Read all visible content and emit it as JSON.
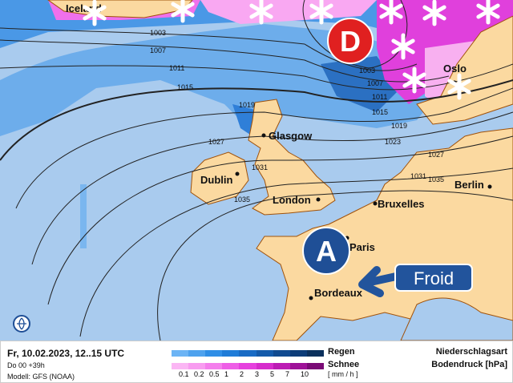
{
  "map": {
    "cities": [
      {
        "name": "Glasgow"
      },
      {
        "name": "Dublin"
      },
      {
        "name": "London"
      },
      {
        "name": "Bruxelles"
      },
      {
        "name": "Paris"
      },
      {
        "name": "Bordeaux"
      },
      {
        "name": "Berlin"
      },
      {
        "name": "Oslo"
      },
      {
        "name": "Iceland"
      }
    ],
    "isobar_labels": [
      "1003",
      "1007",
      "1011",
      "1015",
      "1019",
      "1023",
      "1027",
      "1031",
      "1035",
      "1003",
      "1007",
      "1011",
      "1015",
      "1019",
      "1023",
      "1027",
      "1031",
      "1035"
    ],
    "low_pressure_label": "D",
    "high_pressure_label": "A",
    "annotation": "Froid",
    "colors": {
      "sea": "#a9cbee",
      "land": "#fbd9a0",
      "border": "#a0520a",
      "low": "#e02020",
      "high": "#1f4f96",
      "annotation": "#22549c",
      "rain": "#3b8ee0",
      "snow": "#e040e0"
    },
    "icons": [
      "snowflake-icon",
      "arrow-left-icon",
      "globe-icon"
    ]
  },
  "footer": {
    "datetime": "Fr, 10.02.2023, 12..15 UTC",
    "run": "Do 00 +39h",
    "model": "Modell: GFS (NOAA)",
    "rain_label": "Regen",
    "snow_label": "Schnee",
    "unit": "[ mm / h ]",
    "ticks": [
      "0.1",
      "0.2",
      "0.5",
      "1",
      "2",
      "3",
      "5",
      "7",
      "10"
    ],
    "title1": "Niederschlagsart",
    "title2": "Bodendruck [hPa]",
    "rain_colors": [
      "#6cb4f5",
      "#4ea2ee",
      "#2f8ee6",
      "#1f7cd8",
      "#196bc4",
      "#145aaa",
      "#104a90",
      "#0c3c78",
      "#0a305c"
    ],
    "snow_colors": [
      "#fbb6f4",
      "#f89cf0",
      "#f47eec",
      "#ee5ee6",
      "#e640de",
      "#d62ccc",
      "#bc1cb4",
      "#9e1298",
      "#7a0a76"
    ]
  }
}
